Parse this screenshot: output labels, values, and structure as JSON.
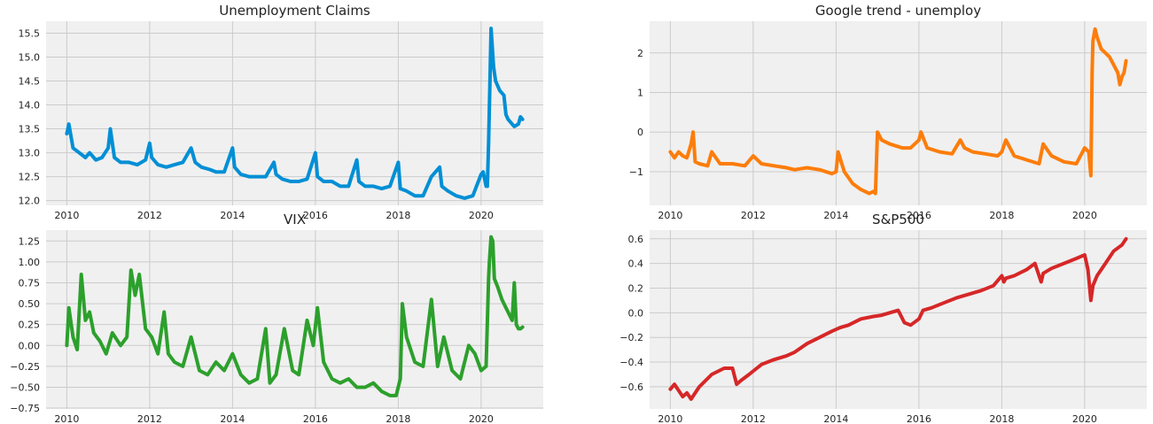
{
  "chart_data": [
    {
      "type": "line",
      "title": "Unemployment Claims",
      "xlabel": "",
      "ylabel": "",
      "grid": true,
      "color": "#008fd5",
      "xlim": [
        2009.5,
        2021.5
      ],
      "ylim": [
        11.9,
        15.75
      ],
      "xticks": [
        "2010",
        "2012",
        "2014",
        "2016",
        "2018",
        "2020"
      ],
      "yticks": [
        "12.0",
        "12.5",
        "13.0",
        "13.5",
        "14.0",
        "14.5",
        "15.0",
        "15.5"
      ],
      "x": [
        2010.0,
        2010.05,
        2010.15,
        2010.3,
        2010.45,
        2010.55,
        2010.7,
        2010.85,
        2011.0,
        2011.05,
        2011.15,
        2011.3,
        2011.5,
        2011.7,
        2011.9,
        2012.0,
        2012.05,
        2012.2,
        2012.4,
        2012.6,
        2012.8,
        2013.0,
        2013.1,
        2013.25,
        2013.45,
        2013.6,
        2013.8,
        2014.0,
        2014.05,
        2014.2,
        2014.4,
        2014.6,
        2014.8,
        2015.0,
        2015.05,
        2015.2,
        2015.4,
        2015.6,
        2015.8,
        2016.0,
        2016.05,
        2016.2,
        2016.4,
        2016.6,
        2016.8,
        2017.0,
        2017.05,
        2017.2,
        2017.4,
        2017.6,
        2017.8,
        2018.0,
        2018.05,
        2018.2,
        2018.4,
        2018.6,
        2018.8,
        2019.0,
        2019.05,
        2019.2,
        2019.4,
        2019.6,
        2019.8,
        2020.0,
        2020.05,
        2020.12,
        2020.15,
        2020.18,
        2020.22,
        2020.24,
        2020.27,
        2020.3,
        2020.35,
        2020.45,
        2020.55,
        2020.6,
        2020.65,
        2020.7,
        2020.75,
        2020.8,
        2020.9,
        2020.95,
        2021.0
      ],
      "y": [
        13.4,
        13.6,
        13.1,
        13.0,
        12.9,
        13.0,
        12.85,
        12.9,
        13.1,
        13.5,
        12.9,
        12.8,
        12.8,
        12.75,
        12.85,
        13.2,
        12.9,
        12.75,
        12.7,
        12.75,
        12.8,
        13.1,
        12.8,
        12.7,
        12.65,
        12.6,
        12.6,
        13.1,
        12.7,
        12.55,
        12.5,
        12.5,
        12.5,
        12.8,
        12.55,
        12.45,
        12.4,
        12.4,
        12.45,
        13.0,
        12.5,
        12.4,
        12.4,
        12.3,
        12.3,
        12.85,
        12.4,
        12.3,
        12.3,
        12.25,
        12.3,
        12.8,
        12.25,
        12.2,
        12.1,
        12.1,
        12.5,
        12.7,
        12.3,
        12.2,
        12.1,
        12.05,
        12.1,
        12.55,
        12.6,
        12.3,
        12.3,
        13.2,
        14.8,
        15.6,
        15.2,
        14.8,
        14.5,
        14.3,
        14.2,
        13.8,
        13.7,
        13.65,
        13.6,
        13.55,
        13.6,
        13.75,
        13.7
      ]
    },
    {
      "type": "line",
      "title": "Google trend - unemploy",
      "xlabel": "",
      "ylabel": "",
      "grid": true,
      "color": "#fc4f30",
      "xlim": [
        2009.5,
        2021.5
      ],
      "ylim": [
        -1.85,
        2.8
      ],
      "xticks": [
        "2010",
        "2012",
        "2014",
        "2016",
        "2018",
        "2020"
      ],
      "yticks": [
        "−1",
        "0",
        "1",
        "2"
      ],
      "x": [
        2010.0,
        2010.1,
        2010.2,
        2010.3,
        2010.4,
        2010.5,
        2010.55,
        2010.6,
        2010.7,
        2010.9,
        2011.0,
        2011.2,
        2011.5,
        2011.8,
        2012.0,
        2012.2,
        2012.5,
        2012.8,
        2013.0,
        2013.3,
        2013.6,
        2013.9,
        2014.0,
        2014.05,
        2014.2,
        2014.4,
        2014.6,
        2014.8,
        2014.9,
        2014.95,
        2015.0,
        2015.1,
        2015.3,
        2015.6,
        2015.8,
        2016.0,
        2016.05,
        2016.2,
        2016.5,
        2016.8,
        2017.0,
        2017.1,
        2017.3,
        2017.6,
        2017.9,
        2018.0,
        2018.1,
        2018.3,
        2018.6,
        2018.9,
        2019.0,
        2019.2,
        2019.5,
        2019.8,
        2020.0,
        2020.1,
        2020.15,
        2020.18,
        2020.2,
        2020.25,
        2020.3,
        2020.4,
        2020.5,
        2020.6,
        2020.7,
        2020.8,
        2020.85,
        2020.9,
        2020.95,
        2021.0
      ],
      "y": [
        -0.5,
        -0.65,
        -0.5,
        -0.6,
        -0.65,
        -0.3,
        0.0,
        -0.75,
        -0.8,
        -0.85,
        -0.5,
        -0.8,
        -0.8,
        -0.85,
        -0.6,
        -0.8,
        -0.85,
        -0.9,
        -0.95,
        -0.9,
        -0.95,
        -1.05,
        -1.0,
        -0.5,
        -1.0,
        -1.3,
        -1.45,
        -1.55,
        -1.5,
        -1.55,
        0.0,
        -0.2,
        -0.3,
        -0.4,
        -0.4,
        -0.2,
        0.0,
        -0.4,
        -0.5,
        -0.55,
        -0.2,
        -0.4,
        -0.5,
        -0.55,
        -0.6,
        -0.5,
        -0.2,
        -0.6,
        -0.7,
        -0.8,
        -0.3,
        -0.6,
        -0.75,
        -0.8,
        -0.4,
        -0.5,
        -1.1,
        1.5,
        2.3,
        2.6,
        2.4,
        2.1,
        2.0,
        1.9,
        1.7,
        1.5,
        1.2,
        1.4,
        1.5,
        1.8
      ]
    },
    {
      "type": "line",
      "title": "VIX",
      "xlabel": "",
      "ylabel": "",
      "grid": true,
      "color": "#6d904f",
      "xlim": [
        2009.5,
        2021.5
      ],
      "ylim": [
        -0.76,
        1.38
      ],
      "xticks": [
        "2010",
        "2012",
        "2014",
        "2016",
        "2018",
        "2020"
      ],
      "yticks": [
        "−0.75",
        "−0.50",
        "−0.25",
        "0.00",
        "0.25",
        "0.50",
        "0.75",
        "1.00",
        "1.25"
      ],
      "x": [
        2010.0,
        2010.05,
        2010.15,
        2010.25,
        2010.35,
        2010.45,
        2010.55,
        2010.65,
        2010.8,
        2010.95,
        2011.1,
        2011.3,
        2011.45,
        2011.55,
        2011.65,
        2011.75,
        2011.9,
        2012.05,
        2012.2,
        2012.35,
        2012.45,
        2012.6,
        2012.8,
        2013.0,
        2013.2,
        2013.4,
        2013.6,
        2013.8,
        2014.0,
        2014.2,
        2014.4,
        2014.6,
        2014.8,
        2014.9,
        2015.05,
        2015.25,
        2015.45,
        2015.6,
        2015.8,
        2015.95,
        2016.05,
        2016.2,
        2016.4,
        2016.6,
        2016.8,
        2017.0,
        2017.2,
        2017.4,
        2017.6,
        2017.8,
        2017.95,
        2018.05,
        2018.1,
        2018.2,
        2018.4,
        2018.6,
        2018.8,
        2018.95,
        2019.1,
        2019.3,
        2019.5,
        2019.7,
        2019.85,
        2020.0,
        2020.12,
        2020.18,
        2020.2,
        2020.24,
        2020.28,
        2020.32,
        2020.4,
        2020.5,
        2020.6,
        2020.7,
        2020.75,
        2020.8,
        2020.85,
        2020.9,
        2020.95,
        2021.0
      ],
      "y": [
        0.0,
        0.45,
        0.1,
        -0.05,
        0.85,
        0.3,
        0.4,
        0.15,
        0.05,
        -0.1,
        0.15,
        0.0,
        0.1,
        0.9,
        0.6,
        0.85,
        0.2,
        0.1,
        -0.1,
        0.4,
        -0.1,
        -0.2,
        -0.25,
        0.1,
        -0.3,
        -0.35,
        -0.2,
        -0.3,
        -0.1,
        -0.35,
        -0.45,
        -0.4,
        0.2,
        -0.45,
        -0.35,
        0.2,
        -0.3,
        -0.35,
        0.3,
        0.0,
        0.45,
        -0.2,
        -0.4,
        -0.45,
        -0.4,
        -0.5,
        -0.5,
        -0.45,
        -0.55,
        -0.6,
        -0.6,
        -0.4,
        0.5,
        0.1,
        -0.2,
        -0.25,
        0.55,
        -0.25,
        0.1,
        -0.3,
        -0.4,
        0.0,
        -0.1,
        -0.3,
        -0.25,
        0.8,
        1.0,
        1.3,
        1.25,
        0.8,
        0.7,
        0.55,
        0.45,
        0.35,
        0.3,
        0.75,
        0.25,
        0.2,
        0.2,
        0.22
      ]
    },
    {
      "type": "line",
      "title": "S&P500",
      "xlabel": "",
      "ylabel": "",
      "grid": true,
      "color": "#e5ae38",
      "xlim": [
        2009.5,
        2021.5
      ],
      "ylim": [
        -0.78,
        0.67
      ],
      "xticks": [
        "2010",
        "2012",
        "2014",
        "2016",
        "2018",
        "2020"
      ],
      "yticks": [
        "−0.6",
        "−0.4",
        "−0.2",
        "0.0",
        "0.2",
        "0.4",
        "0.6"
      ],
      "x": [
        2010.0,
        2010.1,
        2010.3,
        2010.4,
        2010.5,
        2010.7,
        2011.0,
        2011.3,
        2011.5,
        2011.6,
        2011.7,
        2011.9,
        2012.2,
        2012.5,
        2012.8,
        2013.0,
        2013.3,
        2013.6,
        2013.9,
        2014.1,
        2014.3,
        2014.6,
        2014.9,
        2015.1,
        2015.3,
        2015.5,
        2015.65,
        2015.8,
        2016.0,
        2016.1,
        2016.3,
        2016.6,
        2016.9,
        2017.2,
        2017.5,
        2017.8,
        2018.0,
        2018.05,
        2018.1,
        2018.3,
        2018.6,
        2018.8,
        2018.95,
        2019.0,
        2019.2,
        2019.5,
        2019.8,
        2020.0,
        2020.08,
        2020.15,
        2020.2,
        2020.3,
        2020.5,
        2020.7,
        2020.9,
        2021.0
      ],
      "y": [
        -0.62,
        -0.58,
        -0.68,
        -0.65,
        -0.7,
        -0.6,
        -0.5,
        -0.45,
        -0.45,
        -0.58,
        -0.55,
        -0.5,
        -0.42,
        -0.38,
        -0.35,
        -0.32,
        -0.25,
        -0.2,
        -0.15,
        -0.12,
        -0.1,
        -0.05,
        -0.03,
        -0.02,
        0.0,
        0.02,
        -0.08,
        -0.1,
        -0.05,
        0.02,
        0.04,
        0.08,
        0.12,
        0.15,
        0.18,
        0.22,
        0.3,
        0.25,
        0.28,
        0.3,
        0.35,
        0.4,
        0.25,
        0.32,
        0.36,
        0.4,
        0.44,
        0.47,
        0.35,
        0.1,
        0.22,
        0.3,
        0.4,
        0.5,
        0.55,
        0.6
      ]
    }
  ]
}
